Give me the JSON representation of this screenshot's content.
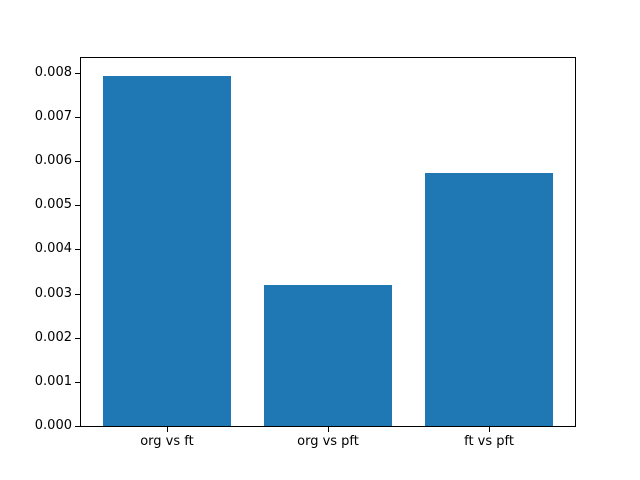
{
  "chart_data": {
    "type": "bar",
    "categories": [
      "org vs ft",
      "org vs pft",
      "ft vs pft"
    ],
    "values": [
      0.00797,
      0.00322,
      0.00576
    ],
    "title": "",
    "xlabel": "",
    "ylabel": "",
    "ylim": [
      0.0,
      0.00838
    ],
    "xlim": [
      -0.54,
      2.54
    ],
    "bar_width_units": 0.8,
    "yticks": [
      0.0,
      0.001,
      0.002,
      0.003,
      0.004,
      0.005,
      0.006,
      0.007,
      0.008
    ],
    "ytick_labels": [
      "0.000",
      "0.001",
      "0.002",
      "0.003",
      "0.004",
      "0.005",
      "0.006",
      "0.007",
      "0.008"
    ],
    "bar_color": "#1f77b4",
    "background_color": "#ffffff",
    "spine_color": "#000000",
    "tick_color": "#000000",
    "grid": false,
    "legend": null
  }
}
